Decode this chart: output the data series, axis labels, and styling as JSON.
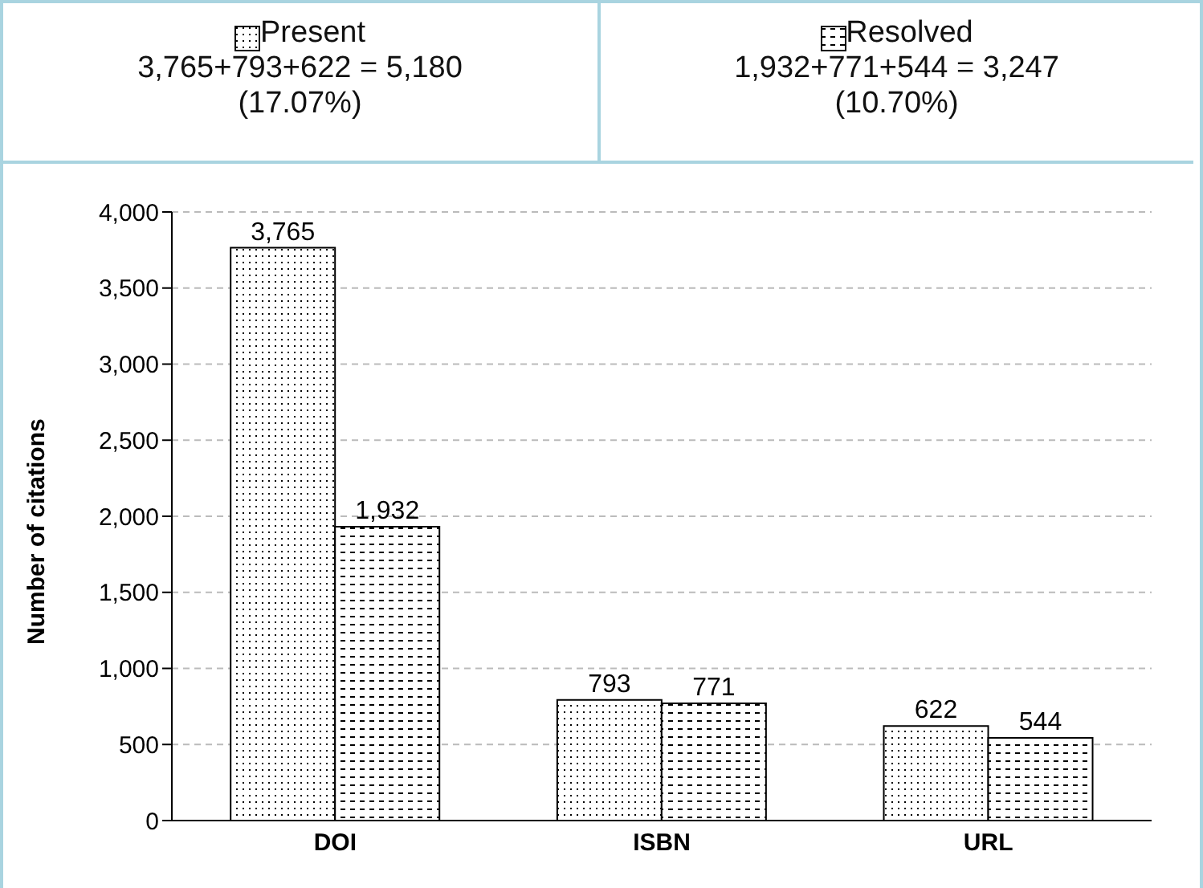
{
  "chart_data": {
    "type": "bar",
    "ylabel": "Number of citations",
    "categories": [
      "DOI",
      "ISBN",
      "URL"
    ],
    "series": [
      {
        "name": "Present",
        "color": "#000000",
        "values": [
          3765,
          793,
          622
        ],
        "value_labels": [
          "3,765",
          "793",
          "622"
        ]
      },
      {
        "name": "Resolved",
        "color": "#000000",
        "values": [
          1932,
          771,
          544
        ],
        "value_labels": [
          "1,932",
          "771",
          "544"
        ]
      }
    ],
    "annotations": [
      "3,765+793+622 = 5,180 (17.07%)",
      "1,932+771+544 = 3,247 (10.70%)"
    ],
    "ylim": [
      0,
      4000
    ],
    "yticks": [
      0,
      500,
      {
        "value": 1000,
        "label": "1,000"
      },
      {
        "value": 1500,
        "label": "1,500"
      },
      {
        "value": 2000,
        "label": "2,000"
      },
      {
        "value": 2500,
        "label": "2,500"
      },
      {
        "value": 3000,
        "label": "3,000"
      },
      {
        "value": 3500,
        "label": "3,500"
      },
      {
        "value": 4000,
        "label": "4,000"
      }
    ],
    "grid": "y",
    "legend": "top"
  }
}
